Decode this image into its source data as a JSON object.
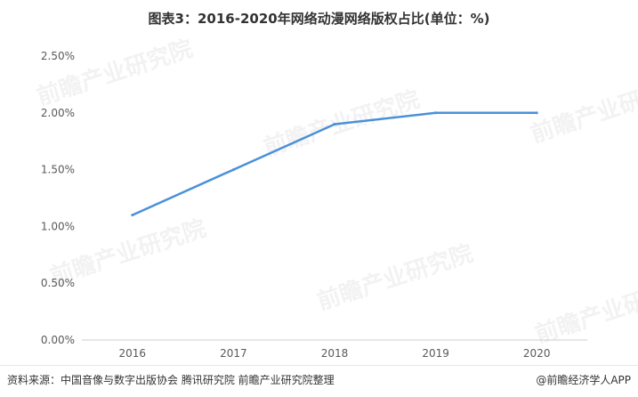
{
  "title": "图表3：2016-2020年网络动漫网络版权占比(单位：%)",
  "source": "资料来源：中国音像与数字出版协会 腾讯研究院 前瞻产业研究院整理",
  "brand": "@前瞻经济学人APP",
  "watermark": "前瞻产业研究院",
  "colors": {
    "line": "#4a90d9",
    "axis": "#cccccc",
    "text": "#595959"
  },
  "chart_data": {
    "type": "line",
    "categories": [
      "2016",
      "2017",
      "2018",
      "2019",
      "2020"
    ],
    "series": [
      {
        "values": [
          1.1,
          1.5,
          1.9,
          2.0,
          2.0
        ]
      }
    ],
    "ylim": [
      0,
      2.5
    ],
    "yticks": [
      "0.00%",
      "0.50%",
      "1.00%",
      "1.50%",
      "2.00%",
      "2.50%"
    ],
    "ytick_values": [
      0,
      0.5,
      1.0,
      1.5,
      2.0,
      2.5
    ],
    "grid": false,
    "xlabel": "",
    "ylabel": ""
  }
}
